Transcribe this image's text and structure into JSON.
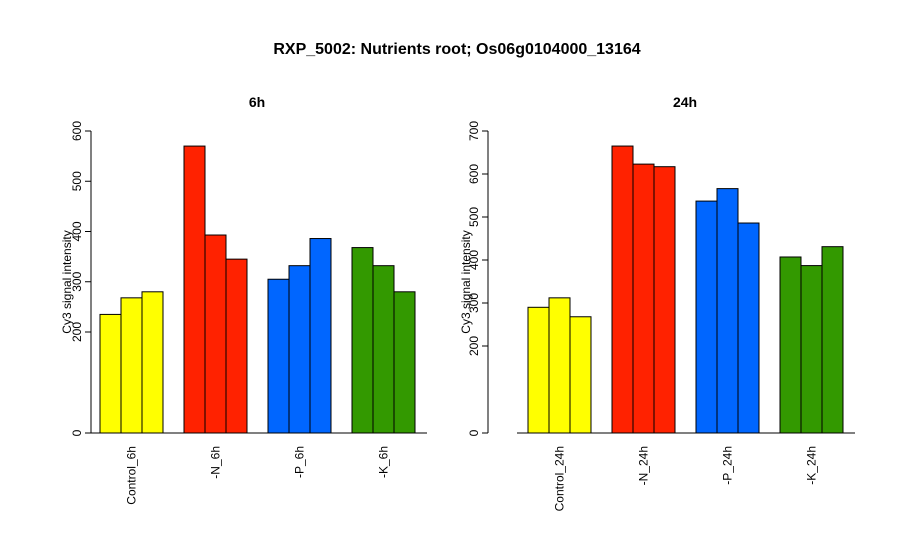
{
  "title": "RXP_5002: Nutrients root; Os06g0104000_13164",
  "chart_data": [
    {
      "type": "bar",
      "title": "6h",
      "ylabel": "Cy3 signal intensity",
      "ylim": [
        0,
        600
      ],
      "yticks": [
        0,
        200,
        300,
        400,
        500,
        600
      ],
      "scale": "nonlinear (offset axis; gap between 0 and 200)",
      "groups": [
        {
          "label": "Control_6h",
          "color": "#FFFF00",
          "values": [
            235,
            268,
            280
          ]
        },
        {
          "label": "-N_6h",
          "color": "#FF2200",
          "values": [
            570,
            393,
            345
          ]
        },
        {
          "label": "-P_6h",
          "color": "#0066FF",
          "values": [
            305,
            332,
            386
          ]
        },
        {
          "label": "-K_6h",
          "color": "#339900",
          "values": [
            368,
            332,
            280
          ]
        }
      ]
    },
    {
      "type": "bar",
      "title": "24h",
      "ylabel": "Cy3 signal intensity",
      "ylim": [
        0,
        700
      ],
      "yticks": [
        0,
        200,
        300,
        400,
        500,
        600,
        700
      ],
      "scale": "nonlinear (offset axis; gap between 0 and 200)",
      "groups": [
        {
          "label": "Control_24h",
          "color": "#FFFF00",
          "values": [
            290,
            312,
            268
          ]
        },
        {
          "label": "-N_24h",
          "color": "#FF2200",
          "values": [
            665,
            623,
            617
          ]
        },
        {
          "label": "-P_24h",
          "color": "#0066FF",
          "values": [
            537,
            566,
            486
          ]
        },
        {
          "label": "-K_24h",
          "color": "#339900",
          "values": [
            407,
            387,
            431
          ]
        }
      ]
    }
  ]
}
